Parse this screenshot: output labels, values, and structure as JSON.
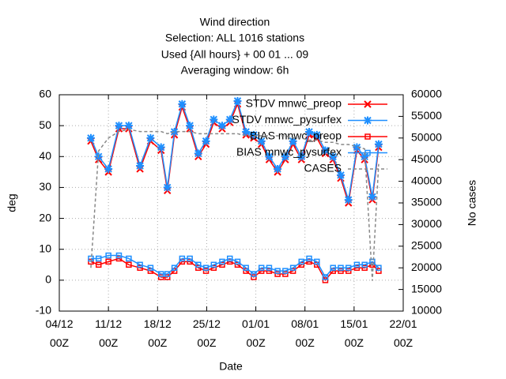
{
  "chart_data": {
    "type": "line",
    "title": "Wind direction",
    "subtitle": [
      "Selection: ALL    1016 stations",
      "Used {All hours} + 00 01 ... 09",
      "Averaging window:  6h"
    ],
    "xlabel": "Date",
    "ylabel": "deg",
    "y2label": "No cases",
    "grid": true,
    "legend": "upper right",
    "xlim": [
      0,
      49
    ],
    "xticks": [
      {
        "value": 0,
        "label": "04/12 00Z"
      },
      {
        "value": 7,
        "label": "11/12 00Z"
      },
      {
        "value": 14,
        "label": "18/12 00Z"
      },
      {
        "value": 21,
        "label": "25/12 00Z"
      },
      {
        "value": 28,
        "label": "01/01 00Z"
      },
      {
        "value": 35,
        "label": "08/01 00Z"
      },
      {
        "value": 42,
        "label": "15/01 00Z"
      },
      {
        "value": 49,
        "label": "22/01 00Z"
      }
    ],
    "ylim": [
      -10,
      60
    ],
    "yticks": [
      -10,
      0,
      10,
      20,
      30,
      40,
      50,
      60
    ],
    "y2lim": [
      10000,
      60000
    ],
    "y2ticks": [
      10000,
      15000,
      20000,
      25000,
      30000,
      35000,
      40000,
      45000,
      50000,
      55000,
      60000
    ],
    "x": [
      4.5,
      5.6,
      7.0,
      8.5,
      9.9,
      11.5,
      13.0,
      14.5,
      15.4,
      16.4,
      17.5,
      18.6,
      19.8,
      20.9,
      22.0,
      23.2,
      24.3,
      25.4,
      26.6,
      27.7,
      28.8,
      29.9,
      31.1,
      32.2,
      33.3,
      34.5,
      35.6,
      36.7,
      37.9,
      39.0,
      40.1,
      41.2,
      42.4,
      43.5,
      44.6,
      45.5
    ],
    "series": [
      {
        "name": "STDV mnwc_preop",
        "color": "#ff0000",
        "marker": "cross",
        "values": [
          45,
          39,
          35,
          49,
          49,
          36,
          45,
          42,
          29,
          47,
          56,
          49,
          40,
          44,
          51,
          49,
          51,
          57,
          47,
          46,
          44,
          39,
          35,
          39,
          44,
          39,
          47,
          46,
          41,
          39,
          33,
          25,
          42,
          39,
          26,
          43
        ]
      },
      {
        "name": "STDV mnwc_pysurfex",
        "color": "#1e8fff",
        "marker": "star",
        "values": [
          46,
          40,
          36,
          50,
          50,
          37,
          46,
          43,
          30,
          48,
          57,
          50,
          41,
          45,
          52,
          50,
          52,
          58,
          48,
          47,
          45,
          40,
          36,
          40,
          45,
          40,
          48,
          47,
          42,
          40,
          34,
          26,
          43,
          40,
          27,
          44
        ]
      },
      {
        "name": "BIAS mnwc_preop",
        "color": "#ff0000",
        "marker": "box",
        "values": [
          6,
          5,
          6,
          7,
          5,
          4,
          3,
          1,
          1,
          3,
          6,
          6,
          4,
          3,
          4,
          5,
          6,
          5,
          3,
          1,
          3,
          3,
          2,
          2,
          3,
          5,
          6,
          5,
          0,
          3,
          3,
          3,
          4,
          4,
          5,
          3
        ]
      },
      {
        "name": "BIAS mnwc_pysurfex",
        "color": "#1e8fff",
        "marker": "box",
        "values": [
          7,
          7,
          8,
          8,
          7,
          5,
          4,
          2,
          2,
          4,
          7,
          7,
          5,
          4,
          5,
          6,
          7,
          6,
          4,
          2,
          4,
          4,
          3,
          3,
          4,
          6,
          7,
          6,
          1,
          4,
          4,
          4,
          5,
          5,
          6,
          4
        ]
      },
      {
        "name": "CASES",
        "color": "#888888",
        "axis": "y2",
        "dashed": true,
        "values": [
          20000,
          47000,
          50000,
          51500,
          52000,
          51500,
          51500,
          51500,
          51000,
          51500,
          51500,
          51500,
          51000,
          51000,
          51000,
          51000,
          51000,
          51000,
          50500,
          50500,
          50500,
          50500,
          50500,
          50500,
          50000,
          50000,
          49500,
          49500,
          49000,
          49000,
          48500,
          48500,
          48000,
          47500,
          17000,
          44000
        ]
      }
    ]
  }
}
